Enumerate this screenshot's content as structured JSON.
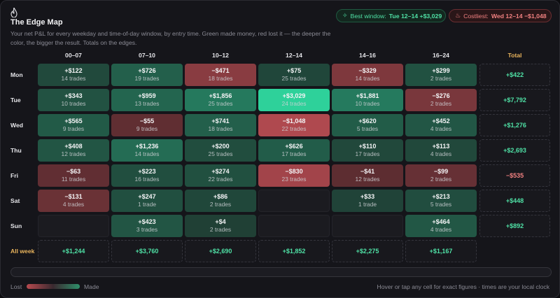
{
  "header": {
    "title": "The Edge Map",
    "subtitle": "Your net P&L for every weekday and time-of-day window, by entry time. Green made money, red lost it — the deeper the color, the bigger the result. Totals on the edges.",
    "logo_icon": "flame-icon"
  },
  "chips": {
    "best_label": "Best window:",
    "best_value": "Tue 12–14  +$3,029",
    "best_icon": "sparkle-icon",
    "cost_label": "Costliest:",
    "cost_value": "Wed 12–14  −$1,048",
    "cost_icon": "flame-icon"
  },
  "columns": [
    "00–07",
    "07–10",
    "10–12",
    "12–14",
    "14–16",
    "16–24"
  ],
  "total_label": "Total",
  "all_week_label": "All week",
  "rows": [
    {
      "day": "Mon",
      "total": "+$422",
      "cells": [
        {
          "pnl": "+$122",
          "trades": "14 trades",
          "value": 122
        },
        {
          "pnl": "+$726",
          "trades": "19 trades",
          "value": 726
        },
        {
          "pnl": "−$471",
          "trades": "18 trades",
          "value": -471
        },
        {
          "pnl": "+$75",
          "trades": "25 trades",
          "value": 75
        },
        {
          "pnl": "−$329",
          "trades": "14 trades",
          "value": -329
        },
        {
          "pnl": "+$299",
          "trades": "2 trades",
          "value": 299
        }
      ]
    },
    {
      "day": "Tue",
      "total": "+$7,792",
      "cells": [
        {
          "pnl": "+$343",
          "trades": "10 trades",
          "value": 343
        },
        {
          "pnl": "+$959",
          "trades": "13 trades",
          "value": 959
        },
        {
          "pnl": "+$1,856",
          "trades": "25 trades",
          "value": 1856
        },
        {
          "pnl": "+$3,029",
          "trades": "24 trades",
          "value": 3029
        },
        {
          "pnl": "+$1,881",
          "trades": "10 trades",
          "value": 1881
        },
        {
          "pnl": "−$276",
          "trades": "2 trades",
          "value": -276
        }
      ]
    },
    {
      "day": "Wed",
      "total": "+$1,276",
      "cells": [
        {
          "pnl": "+$565",
          "trades": "9 trades",
          "value": 565
        },
        {
          "pnl": "−$55",
          "trades": "9 trades",
          "value": -55
        },
        {
          "pnl": "+$741",
          "trades": "18 trades",
          "value": 741
        },
        {
          "pnl": "−$1,048",
          "trades": "22 trades",
          "value": -1048
        },
        {
          "pnl": "+$620",
          "trades": "5 trades",
          "value": 620
        },
        {
          "pnl": "+$452",
          "trades": "4 trades",
          "value": 452
        }
      ]
    },
    {
      "day": "Thu",
      "total": "+$2,693",
      "cells": [
        {
          "pnl": "+$408",
          "trades": "12 trades",
          "value": 408
        },
        {
          "pnl": "+$1,236",
          "trades": "14 trades",
          "value": 1236
        },
        {
          "pnl": "+$200",
          "trades": "25 trades",
          "value": 200
        },
        {
          "pnl": "+$626",
          "trades": "17 trades",
          "value": 626
        },
        {
          "pnl": "+$110",
          "trades": "17 trades",
          "value": 110
        },
        {
          "pnl": "+$113",
          "trades": "4 trades",
          "value": 113
        }
      ]
    },
    {
      "day": "Fri",
      "total": "−$535",
      "cells": [
        {
          "pnl": "−$63",
          "trades": "11 trades",
          "value": -63
        },
        {
          "pnl": "+$223",
          "trades": "16 trades",
          "value": 223
        },
        {
          "pnl": "+$274",
          "trades": "22 trades",
          "value": 274
        },
        {
          "pnl": "−$830",
          "trades": "23 trades",
          "value": -830
        },
        {
          "pnl": "−$41",
          "trades": "12 trades",
          "value": -41
        },
        {
          "pnl": "−$99",
          "trades": "2 trades",
          "value": -99
        }
      ]
    },
    {
      "day": "Sat",
      "total": "+$448",
      "cells": [
        {
          "pnl": "−$131",
          "trades": "4 trades",
          "value": -131
        },
        {
          "pnl": "+$247",
          "trades": "1 trade",
          "value": 247
        },
        {
          "pnl": "+$86",
          "trades": "2 trades",
          "value": 86
        },
        null,
        {
          "pnl": "+$33",
          "trades": "1 trade",
          "value": 33
        },
        {
          "pnl": "+$213",
          "trades": "5 trades",
          "value": 213
        }
      ]
    },
    {
      "day": "Sun",
      "total": "+$892",
      "cells": [
        null,
        {
          "pnl": "+$423",
          "trades": "3 trades",
          "value": 423
        },
        {
          "pnl": "+$4",
          "trades": "2 trades",
          "value": 4
        },
        null,
        null,
        {
          "pnl": "+$464",
          "trades": "4 trades",
          "value": 464
        }
      ]
    }
  ],
  "all_week": [
    "+$1,244",
    "+$3,760",
    "+$2,690",
    "+$1,852",
    "+$2,275",
    "+$1,167"
  ],
  "legend": {
    "lost_label": "Lost",
    "made_label": "Made"
  },
  "footer": {
    "hint": "Hover or tap any cell for exact figures · times are your local clock"
  },
  "colors": {
    "profit": "#2ed19a",
    "loss": "#d0545b",
    "accent_total": "#e9b45c",
    "cell_base": "#1d2422"
  }
}
